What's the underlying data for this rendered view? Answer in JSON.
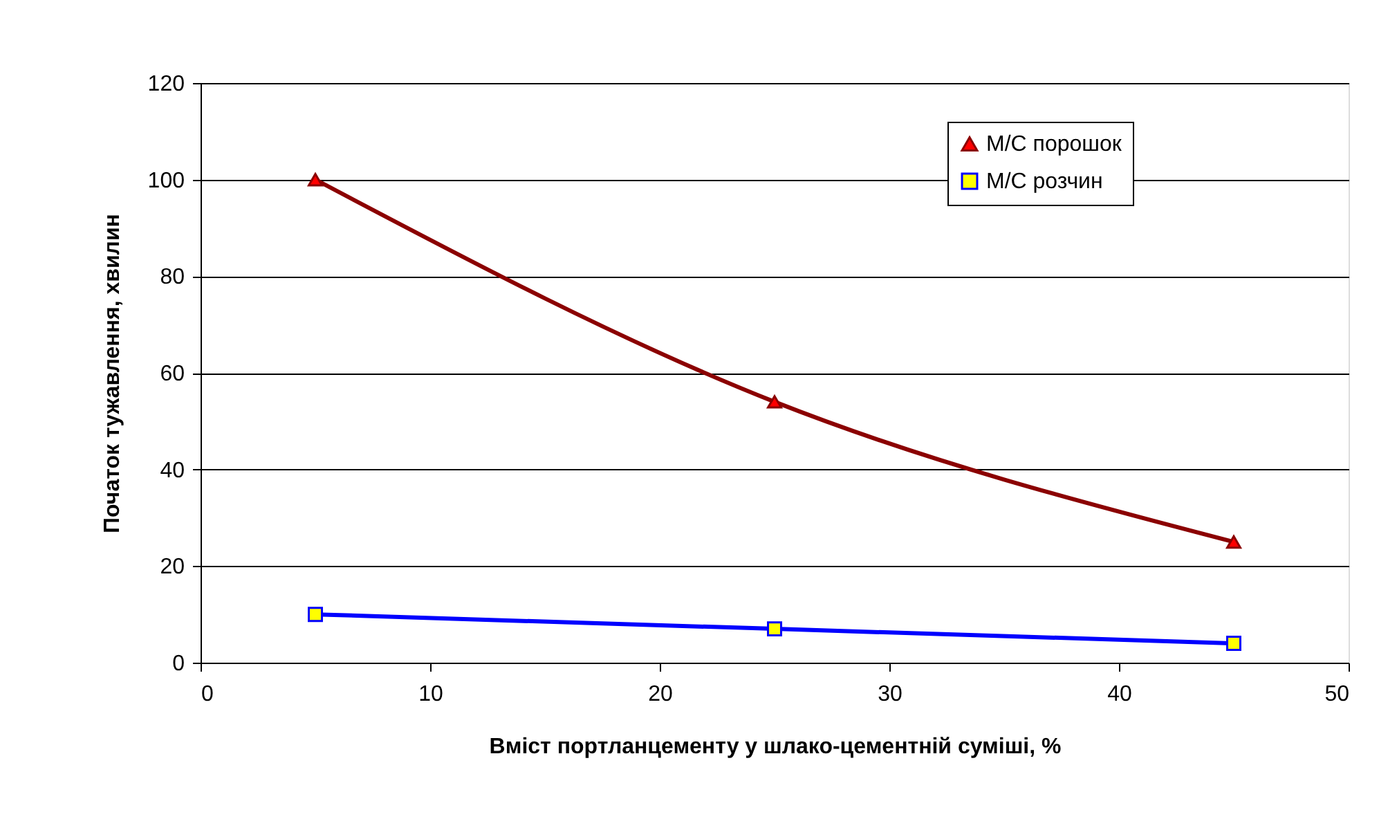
{
  "chart_data": {
    "type": "line",
    "xlabel": "Вміст портланцементу у шлако-цементній суміші, %",
    "ylabel": "Початок тужавлення, хвилин",
    "xlim": [
      0,
      50
    ],
    "xticks": [
      0,
      10,
      20,
      30,
      40,
      50
    ],
    "ylim": [
      0,
      120
    ],
    "yticks": [
      0,
      20,
      40,
      60,
      80,
      100,
      120
    ],
    "grid": "y",
    "legend": "top right",
    "series": [
      {
        "name": "М/С порошок",
        "color": "#8b0000",
        "marker": "triangle",
        "x": [
          5,
          25,
          45
        ],
        "values": [
          100,
          54,
          25
        ]
      },
      {
        "name": "М/С розчин",
        "color": "#0000ff",
        "marker": "square",
        "x": [
          5,
          25,
          45
        ],
        "values": [
          10,
          7,
          4
        ]
      }
    ]
  }
}
